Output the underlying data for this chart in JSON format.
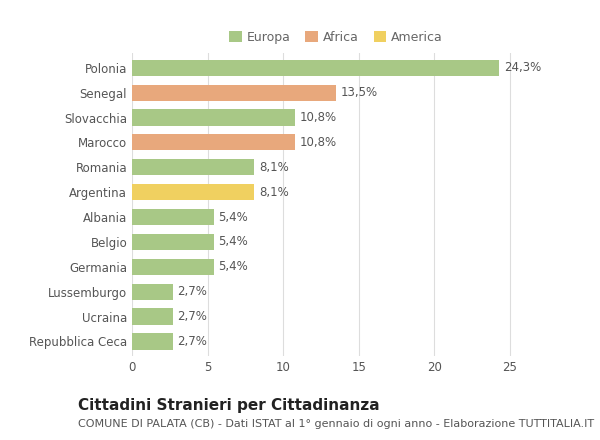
{
  "categories": [
    "Polonia",
    "Senegal",
    "Slovacchia",
    "Marocco",
    "Romania",
    "Argentina",
    "Albania",
    "Belgio",
    "Germania",
    "Lussemburgo",
    "Ucraina",
    "Repubblica Ceca"
  ],
  "values": [
    24.3,
    13.5,
    10.8,
    10.8,
    8.1,
    8.1,
    5.4,
    5.4,
    5.4,
    2.7,
    2.7,
    2.7
  ],
  "labels": [
    "24,3%",
    "13,5%",
    "10,8%",
    "10,8%",
    "8,1%",
    "8,1%",
    "5,4%",
    "5,4%",
    "5,4%",
    "2,7%",
    "2,7%",
    "2,7%"
  ],
  "continents": [
    "Europa",
    "Africa",
    "Europa",
    "Africa",
    "Europa",
    "America",
    "Europa",
    "Europa",
    "Europa",
    "Europa",
    "Europa",
    "Europa"
  ],
  "colors": {
    "Europa": "#a8c886",
    "Africa": "#e8a87c",
    "America": "#f0d060"
  },
  "xlim": [
    0,
    27
  ],
  "background_color": "#ffffff",
  "grid_color": "#dddddd",
  "title": "Cittadini Stranieri per Cittadinanza",
  "subtitle": "COMUNE DI PALATA (CB) - Dati ISTAT al 1° gennaio di ogni anno - Elaborazione TUTTITALIA.IT",
  "title_fontsize": 11,
  "subtitle_fontsize": 8,
  "bar_height": 0.65,
  "tick_fontsize": 8.5,
  "label_fontsize": 8.5
}
